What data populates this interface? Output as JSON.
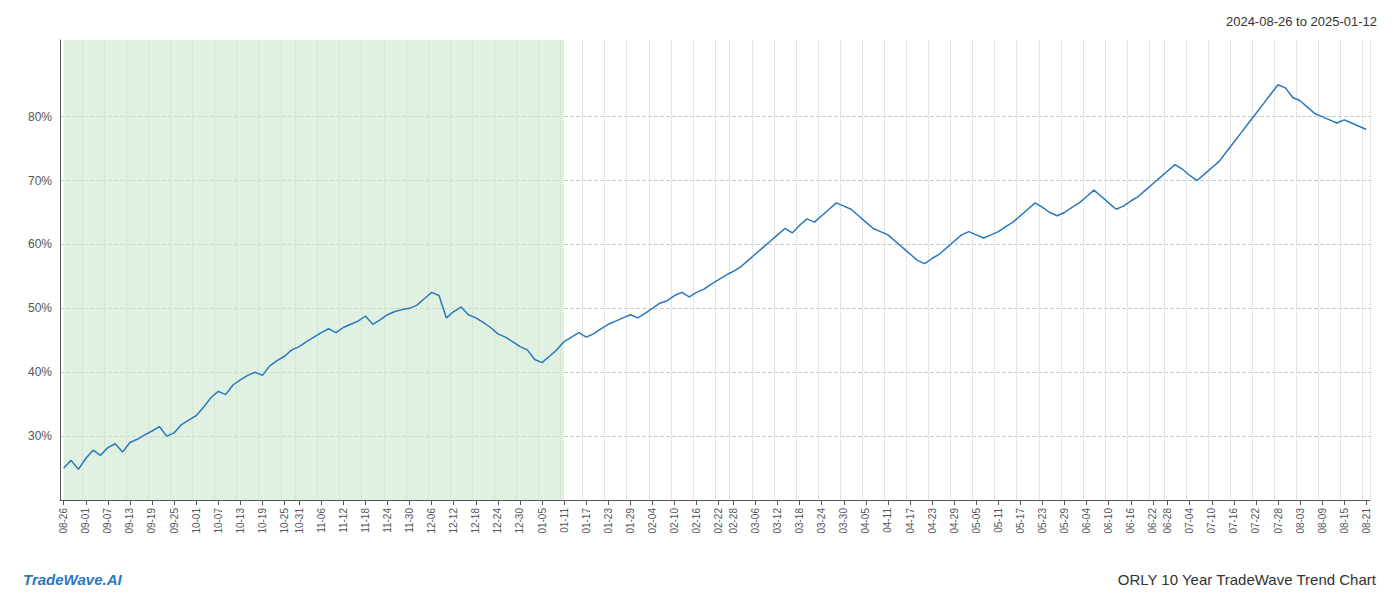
{
  "chart_data": {
    "type": "line",
    "title": "ORLY 10 Year TradeWave Trend Chart",
    "subtitle": "2024-08-26 to 2025-01-12",
    "annotations": [
      "TradeWave.AI"
    ],
    "color": "#2878bd",
    "grid": true,
    "ylim": [
      20,
      92
    ],
    "yticks": [
      {
        "value": 30,
        "label": "30%"
      },
      {
        "value": 40,
        "label": "40%"
      },
      {
        "value": 50,
        "label": "50%"
      },
      {
        "value": 60,
        "label": "60%"
      },
      {
        "value": 70,
        "label": "70%"
      },
      {
        "value": 80,
        "label": "80%"
      }
    ],
    "shaded_region": {
      "from": "08-26",
      "to": "01-11",
      "color": "#c8e6c8"
    },
    "categories": [
      "08-26",
      null,
      null,
      "09-01",
      null,
      null,
      "09-07",
      null,
      null,
      "09-13",
      null,
      null,
      "09-19",
      null,
      null,
      "09-25",
      null,
      null,
      "10-01",
      null,
      null,
      "10-07",
      null,
      null,
      "10-13",
      null,
      null,
      "10-19",
      null,
      null,
      "10-25",
      null,
      "10-31",
      null,
      null,
      "11-06",
      null,
      null,
      "11-12",
      null,
      null,
      "11-18",
      null,
      null,
      "11-24",
      null,
      null,
      "11-30",
      null,
      null,
      "12-06",
      null,
      null,
      "12-12",
      null,
      null,
      "12-18",
      null,
      null,
      "12-24",
      null,
      null,
      "12-30",
      null,
      null,
      "01-05",
      null,
      null,
      "01-11",
      null,
      null,
      "01-17",
      null,
      null,
      "01-23",
      null,
      null,
      "01-29",
      null,
      null,
      "02-04",
      null,
      null,
      "02-10",
      null,
      null,
      "02-16",
      null,
      null,
      "02-22",
      null,
      "02-28",
      null,
      null,
      "03-06",
      null,
      null,
      "03-12",
      null,
      null,
      "03-18",
      null,
      null,
      "03-24",
      null,
      null,
      "03-30",
      null,
      null,
      "04-05",
      null,
      null,
      "04-11",
      null,
      null,
      "04-17",
      null,
      null,
      "04-23",
      null,
      null,
      "04-29",
      null,
      null,
      "05-05",
      null,
      null,
      "05-11",
      null,
      null,
      "05-17",
      null,
      null,
      "05-23",
      null,
      null,
      "05-29",
      null,
      null,
      "06-04",
      null,
      null,
      "06-10",
      null,
      null,
      "06-16",
      null,
      null,
      "06-22",
      null,
      "06-28",
      null,
      null,
      "07-04",
      null,
      null,
      "07-10",
      null,
      null,
      "07-16",
      null,
      null,
      "07-22",
      null,
      null,
      "07-28",
      null,
      null,
      "08-03",
      null,
      null,
      "08-09",
      null,
      null,
      "08-15",
      null,
      null,
      "08-21"
    ],
    "values": [
      25.0,
      26.2,
      24.8,
      26.5,
      27.8,
      27.0,
      28.2,
      28.8,
      27.5,
      29.0,
      29.5,
      30.2,
      30.8,
      31.5,
      30.0,
      30.5,
      31.8,
      32.5,
      33.2,
      34.5,
      36.0,
      37.0,
      36.5,
      38.0,
      38.8,
      39.5,
      40.0,
      39.5,
      41.0,
      41.8,
      42.5,
      43.5,
      44.0,
      44.8,
      45.5,
      46.2,
      46.8,
      46.2,
      47.0,
      47.5,
      48.0,
      48.8,
      47.5,
      48.2,
      49.0,
      49.5,
      49.8,
      50.0,
      50.5,
      51.5,
      52.5,
      52.0,
      48.5,
      49.5,
      50.2,
      49.0,
      48.5,
      47.8,
      47.0,
      46.0,
      45.5,
      44.8,
      44.0,
      43.5,
      42.0,
      41.5,
      42.5,
      43.5,
      44.8,
      45.5,
      46.2,
      45.5,
      46.0,
      46.8,
      47.5,
      48.0,
      48.5,
      49.0,
      48.5,
      49.2,
      50.0,
      50.8,
      51.2,
      52.0,
      52.5,
      51.8,
      52.5,
      53.0,
      53.8,
      54.5,
      55.2,
      55.8,
      56.5,
      57.5,
      58.5,
      59.5,
      60.5,
      61.5,
      62.5,
      61.8,
      63.0,
      64.0,
      63.5,
      64.5,
      65.5,
      66.5,
      66.0,
      65.5,
      64.5,
      63.5,
      62.5,
      62.0,
      61.5,
      60.5,
      59.5,
      58.5,
      57.5,
      57.0,
      57.8,
      58.5,
      59.5,
      60.5,
      61.5,
      62.0,
      61.5,
      61.0,
      61.5,
      62.0,
      62.8,
      63.5,
      64.5,
      65.5,
      66.5,
      65.8,
      65.0,
      64.5,
      65.0,
      65.8,
      66.5,
      67.5,
      68.5,
      67.5,
      66.5,
      65.5,
      66.0,
      66.8,
      67.5,
      68.5,
      69.5,
      70.5,
      71.5,
      72.5,
      71.8,
      70.8,
      70.0,
      71.0,
      72.0,
      73.0,
      74.5,
      76.0,
      77.5,
      79.0,
      80.5,
      82.0,
      83.5,
      85.0,
      84.5,
      83.0,
      82.5,
      81.5,
      80.5,
      80.0,
      79.5,
      79.0,
      79.5,
      79.0,
      78.5,
      78.0
    ]
  }
}
